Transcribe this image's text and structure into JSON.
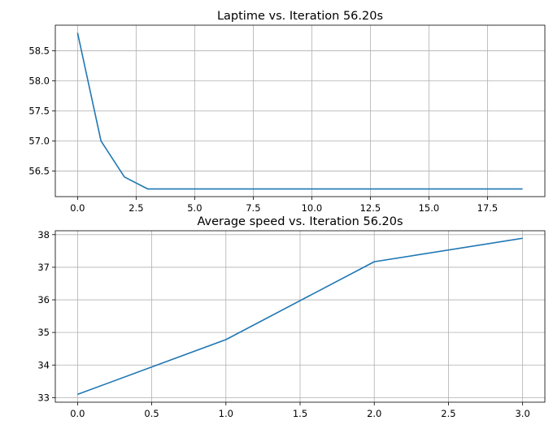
{
  "chart_data": [
    {
      "type": "line",
      "title": "Laptime vs. Iteration 56.20s",
      "xlabel": "",
      "ylabel": "",
      "xlim": [
        -0.95,
        19.95
      ],
      "ylim": [
        56.073,
        58.927
      ],
      "xticks": [
        0,
        2.5,
        5,
        7.5,
        10,
        12.5,
        15,
        17.5
      ],
      "xtick_labels": [
        "0.0",
        "2.5",
        "5.0",
        "7.5",
        "10.0",
        "12.5",
        "15.0",
        "17.5"
      ],
      "yticks": [
        56.5,
        57.0,
        57.5,
        58.0,
        58.5
      ],
      "ytick_labels": [
        "56.5",
        "57.0",
        "57.5",
        "58.0",
        "58.5"
      ],
      "grid": true,
      "series": [
        {
          "color": "#1f77b4",
          "x": [
            0,
            1,
            2,
            3,
            4,
            5,
            6,
            7,
            8,
            9,
            10,
            11,
            12,
            13,
            14,
            15,
            16,
            17,
            18,
            19
          ],
          "y": [
            58.8,
            57.0,
            56.4,
            56.2,
            56.2,
            56.2,
            56.2,
            56.2,
            56.2,
            56.2,
            56.2,
            56.2,
            56.2,
            56.2,
            56.2,
            56.2,
            56.2,
            56.2,
            56.2,
            56.2
          ]
        }
      ]
    },
    {
      "type": "line",
      "title": "Average speed vs. Iteration 56.20s",
      "xlabel": "",
      "ylabel": "",
      "xlim": [
        -0.15,
        3.15
      ],
      "ylim": [
        32.86,
        38.12
      ],
      "xticks": [
        0,
        0.5,
        1,
        1.5,
        2,
        2.5,
        3
      ],
      "xtick_labels": [
        "0.0",
        "0.5",
        "1.0",
        "1.5",
        "2.0",
        "2.5",
        "3.0"
      ],
      "yticks": [
        33,
        34,
        35,
        36,
        37,
        38
      ],
      "ytick_labels": [
        "33",
        "34",
        "35",
        "36",
        "37",
        "38"
      ],
      "grid": true,
      "series": [
        {
          "color": "#1f77b4",
          "x": [
            0,
            1,
            2,
            3
          ],
          "y": [
            33.1,
            34.78,
            37.17,
            37.89
          ]
        }
      ]
    }
  ]
}
